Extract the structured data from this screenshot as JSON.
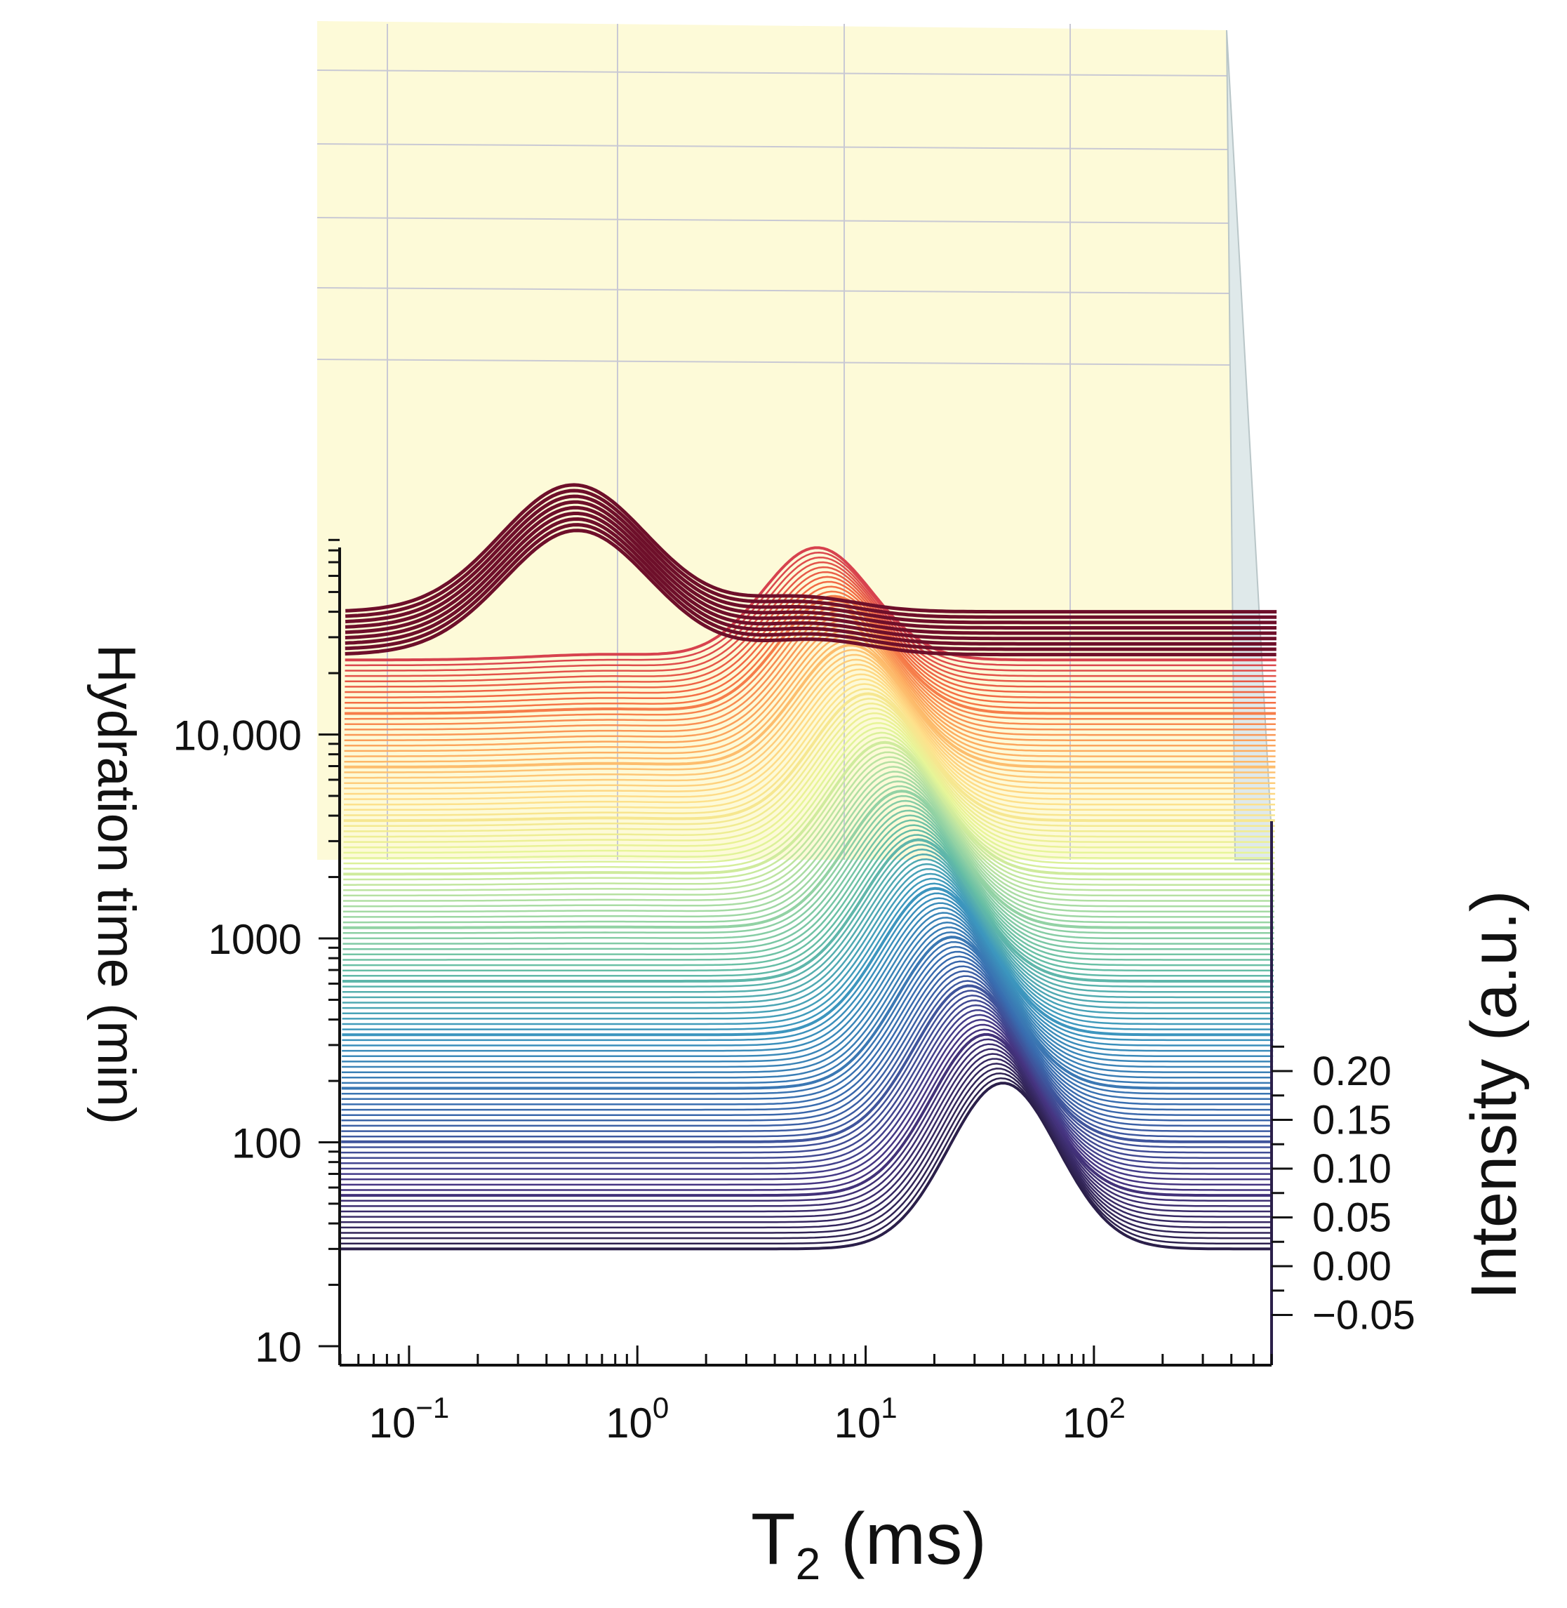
{
  "chart_data": {
    "type": "waterfall-3d-line",
    "title": "",
    "xlabel": {
      "main": "T",
      "sub": "2",
      "rest": " (ms)"
    },
    "ylabel": "Hydration time (min)",
    "zlabel": "Intensity (a.u.)",
    "x_scale": "log",
    "xlim": [
      0.05,
      600
    ],
    "x_ticks": [
      {
        "value": 0.1,
        "base": "10",
        "exp": "−1"
      },
      {
        "value": 1,
        "base": "10",
        "exp": "0"
      },
      {
        "value": 10,
        "base": "10",
        "exp": "1"
      },
      {
        "value": 100,
        "base": "10",
        "exp": "2"
      }
    ],
    "y_scale": "log",
    "ylim": [
      8,
      120000
    ],
    "y_ticks": [
      {
        "value": 10,
        "label": "10"
      },
      {
        "value": 100,
        "label": "100"
      },
      {
        "value": 1000,
        "label": "1000"
      },
      {
        "value": 10000,
        "label": "10,000"
      }
    ],
    "zlim": [
      -0.05,
      0.22
    ],
    "z_ticks": [
      {
        "value": -0.05,
        "label": "−0.05"
      },
      {
        "value": 0.0,
        "label": "0.00"
      },
      {
        "value": 0.05,
        "label": "0.05"
      },
      {
        "value": 0.1,
        "label": "0.10"
      },
      {
        "value": 0.15,
        "label": "0.15"
      },
      {
        "value": 0.2,
        "label": "0.20"
      }
    ],
    "colormap": "Spectral_r",
    "series_summary": {
      "count": 120,
      "hydration_time_range_min": [
        30,
        40000
      ],
      "main_peak_T2_ms_early": 40,
      "main_peak_T2_ms_late": 5,
      "main_peak_height_early": 0.17,
      "main_peak_height_late": 0.015,
      "short_T2_peak_ms_late": 0.5
    },
    "colors": {
      "early": "#2b1f4a",
      "mid": "#3b8fc0",
      "late": "#9b1b2e",
      "latest": "#6e0f2a",
      "back_wall": "#fdfad8",
      "grid": "#c9c9d4"
    }
  }
}
